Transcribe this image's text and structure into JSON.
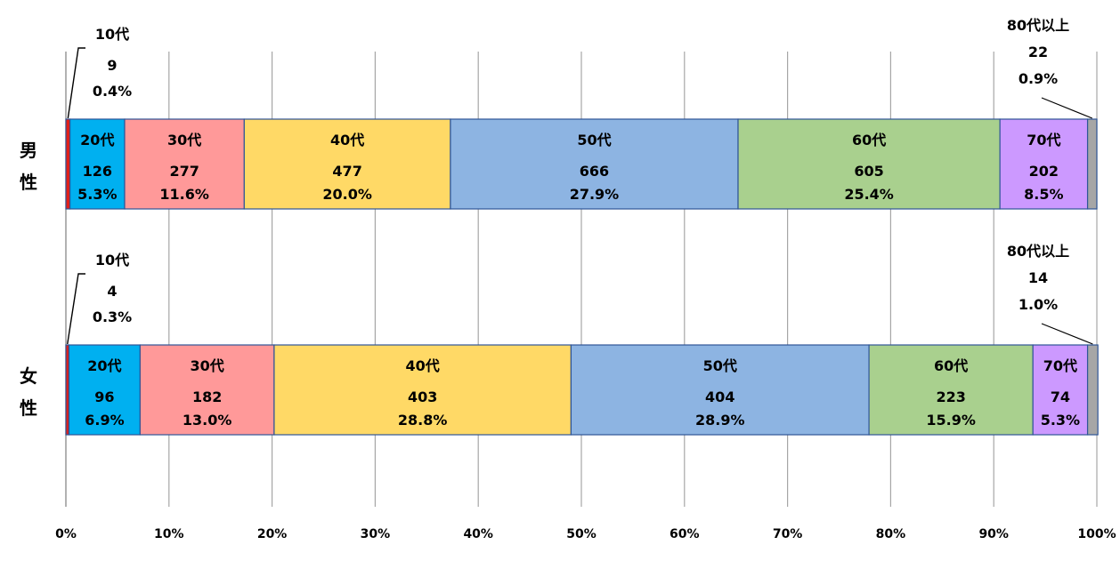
{
  "chart_data": {
    "type": "bar",
    "orientation": "horizontal-stacked-100",
    "xlim": [
      0,
      100
    ],
    "x_ticks": [
      "0%",
      "10%",
      "20%",
      "30%",
      "40%",
      "50%",
      "60%",
      "70%",
      "80%",
      "90%",
      "100%"
    ],
    "grid": "vertical",
    "legend": "none",
    "colors": {
      "10代": "#e0201b",
      "20代": "#00b0f0",
      "30代": "#ff9999",
      "40代": "#ffd966",
      "50代": "#8db4e2",
      "60代": "#a9d08e",
      "70代": "#cc99ff",
      "80代以上": "#a6a6a6"
    },
    "rows": [
      {
        "label_lines": [
          "男",
          "性"
        ],
        "segments": [
          {
            "category": "10代",
            "count": "9",
            "percent": "0.4%",
            "value": 0.4,
            "callout": "left"
          },
          {
            "category": "20代",
            "count": "126",
            "percent": "5.3%",
            "value": 5.3
          },
          {
            "category": "30代",
            "count": "277",
            "percent": "11.6%",
            "value": 11.6
          },
          {
            "category": "40代",
            "count": "477",
            "percent": "20.0%",
            "value": 20.0
          },
          {
            "category": "50代",
            "count": "666",
            "percent": "27.9%",
            "value": 27.9
          },
          {
            "category": "60代",
            "count": "605",
            "percent": "25.4%",
            "value": 25.4
          },
          {
            "category": "70代",
            "count": "202",
            "percent": "8.5%",
            "value": 8.5
          },
          {
            "category": "80代以上",
            "count": "22",
            "percent": "0.9%",
            "value": 0.9,
            "callout": "right"
          }
        ]
      },
      {
        "label_lines": [
          "女",
          "性"
        ],
        "segments": [
          {
            "category": "10代",
            "count": "4",
            "percent": "0.3%",
            "value": 0.3,
            "callout": "left"
          },
          {
            "category": "20代",
            "count": "96",
            "percent": "6.9%",
            "value": 6.9
          },
          {
            "category": "30代",
            "count": "182",
            "percent": "13.0%",
            "value": 13.0
          },
          {
            "category": "40代",
            "count": "403",
            "percent": "28.8%",
            "value": 28.8
          },
          {
            "category": "50代",
            "count": "404",
            "percent": "28.9%",
            "value": 28.9
          },
          {
            "category": "60代",
            "count": "223",
            "percent": "15.9%",
            "value": 15.9
          },
          {
            "category": "70代",
            "count": "74",
            "percent": "5.3%",
            "value": 5.3
          },
          {
            "category": "80代以上",
            "count": "14",
            "percent": "1.0%",
            "value": 1.0,
            "callout": "right"
          }
        ]
      }
    ]
  }
}
